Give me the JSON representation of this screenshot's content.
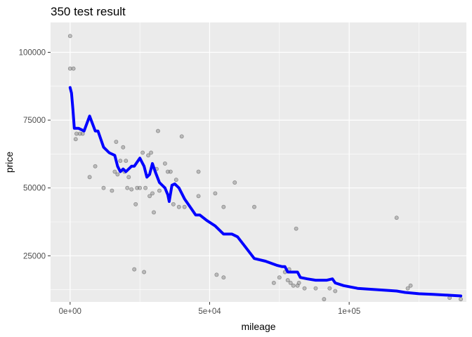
{
  "chart_data": {
    "type": "scatter",
    "title": "350 test result",
    "xlabel": "mileage",
    "ylabel": "price",
    "xlim": [
      -7000,
      142000
    ],
    "ylim": [
      8000,
      111000
    ],
    "x_ticks": [
      {
        "value": 0,
        "label": "0e+00"
      },
      {
        "value": 50000,
        "label": "5e+04"
      },
      {
        "value": 100000,
        "label": "1e+05"
      }
    ],
    "y_ticks": [
      {
        "value": 25000,
        "label": "25000"
      },
      {
        "value": 50000,
        "label": "50000"
      },
      {
        "value": 75000,
        "label": "75000"
      },
      {
        "value": 100000,
        "label": "100000"
      }
    ],
    "grid": true,
    "background_color": "#ebebeb",
    "grid_color": "#ffffff",
    "point_color": "#7f7f7f",
    "line_color": "#0000ff",
    "series": [
      {
        "type": "scatter",
        "points": [
          [
            0,
            106000
          ],
          [
            0,
            94000
          ],
          [
            1200,
            94000
          ],
          [
            2000,
            68000
          ],
          [
            2300,
            70000
          ],
          [
            3500,
            70000
          ],
          [
            4500,
            70000
          ],
          [
            7000,
            54000
          ],
          [
            9000,
            58000
          ],
          [
            12000,
            50000
          ],
          [
            15000,
            49000
          ],
          [
            16000,
            56000
          ],
          [
            16500,
            67000
          ],
          [
            17000,
            55000
          ],
          [
            18000,
            60000
          ],
          [
            19000,
            65000
          ],
          [
            19500,
            56000
          ],
          [
            20000,
            60000
          ],
          [
            20500,
            50000
          ],
          [
            21000,
            54000
          ],
          [
            22000,
            49500
          ],
          [
            23000,
            20000
          ],
          [
            23500,
            44000
          ],
          [
            24000,
            50000
          ],
          [
            25000,
            50000
          ],
          [
            26000,
            63000
          ],
          [
            26500,
            19000
          ],
          [
            27000,
            50000
          ],
          [
            28000,
            62000
          ],
          [
            28500,
            47000
          ],
          [
            29000,
            63000
          ],
          [
            29500,
            48000
          ],
          [
            30000,
            41000
          ],
          [
            31000,
            57000
          ],
          [
            31500,
            71000
          ],
          [
            32000,
            49000
          ],
          [
            34000,
            59000
          ],
          [
            35000,
            56000
          ],
          [
            36000,
            56000
          ],
          [
            37000,
            44000
          ],
          [
            38000,
            53000
          ],
          [
            39000,
            43000
          ],
          [
            40000,
            69000
          ],
          [
            41000,
            43000
          ],
          [
            46000,
            56000
          ],
          [
            46000,
            47000
          ],
          [
            52000,
            48000
          ],
          [
            52500,
            18000
          ],
          [
            55000,
            17000
          ],
          [
            55000,
            43000
          ],
          [
            59000,
            52000
          ],
          [
            66000,
            43000
          ],
          [
            73000,
            15000
          ],
          [
            75000,
            17000
          ],
          [
            77000,
            19000
          ],
          [
            78000,
            16000
          ],
          [
            78500,
            20000
          ],
          [
            79000,
            15000
          ],
          [
            80000,
            14000
          ],
          [
            81000,
            35000
          ],
          [
            81500,
            14000
          ],
          [
            82000,
            15000
          ],
          [
            84000,
            13000
          ],
          [
            88000,
            13000
          ],
          [
            91000,
            9000
          ],
          [
            93000,
            13000
          ],
          [
            95000,
            12000
          ],
          [
            117000,
            39000
          ],
          [
            121000,
            13000
          ],
          [
            122000,
            14000
          ],
          [
            136000,
            9500
          ],
          [
            140000,
            9000
          ]
        ]
      },
      {
        "type": "line",
        "points": [
          [
            0,
            87000
          ],
          [
            500,
            85000
          ],
          [
            1000,
            79000
          ],
          [
            1500,
            72000
          ],
          [
            3000,
            72000
          ],
          [
            5000,
            71000
          ],
          [
            7000,
            76500
          ],
          [
            9000,
            71000
          ],
          [
            10000,
            71000
          ],
          [
            12000,
            65000
          ],
          [
            14000,
            63000
          ],
          [
            16000,
            62000
          ],
          [
            17000,
            58000
          ],
          [
            18000,
            56000
          ],
          [
            19000,
            57000
          ],
          [
            20000,
            56000
          ],
          [
            22000,
            58000
          ],
          [
            23000,
            58000
          ],
          [
            25000,
            61000
          ],
          [
            26500,
            58000
          ],
          [
            27500,
            54000
          ],
          [
            28500,
            55000
          ],
          [
            29500,
            59000
          ],
          [
            30500,
            56000
          ],
          [
            32000,
            52000
          ],
          [
            34000,
            50000
          ],
          [
            35000,
            47500
          ],
          [
            35500,
            45000
          ],
          [
            36500,
            51000
          ],
          [
            37500,
            51500
          ],
          [
            39000,
            50000
          ],
          [
            41000,
            46000
          ],
          [
            43000,
            43000
          ],
          [
            45000,
            40000
          ],
          [
            46500,
            40000
          ],
          [
            49000,
            38000
          ],
          [
            52000,
            36000
          ],
          [
            55000,
            33000
          ],
          [
            58000,
            33000
          ],
          [
            60000,
            32000
          ],
          [
            63000,
            28000
          ],
          [
            66000,
            24000
          ],
          [
            70000,
            23000
          ],
          [
            74000,
            21500
          ],
          [
            76000,
            21000
          ],
          [
            77000,
            21000
          ],
          [
            78000,
            19000
          ],
          [
            80000,
            19000
          ],
          [
            81500,
            19000
          ],
          [
            82500,
            17000
          ],
          [
            85000,
            16500
          ],
          [
            88000,
            16000
          ],
          [
            92000,
            16000
          ],
          [
            94000,
            16500
          ],
          [
            95000,
            15000
          ],
          [
            98000,
            14000
          ],
          [
            103000,
            13000
          ],
          [
            110000,
            12500
          ],
          [
            117000,
            12000
          ],
          [
            120000,
            11500
          ],
          [
            125000,
            11000
          ],
          [
            130000,
            10800
          ],
          [
            140000,
            10200
          ]
        ]
      }
    ]
  }
}
